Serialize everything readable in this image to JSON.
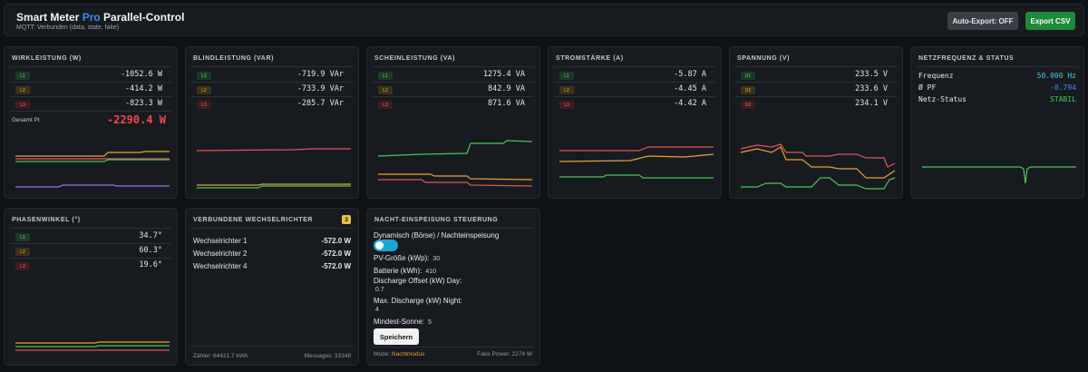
{
  "header": {
    "title_part1": "Smart Meter ",
    "title_pro": "Pro",
    "title_part2": " Parallel-Control",
    "subtitle": "MQTT: Verbunden (data, state, fake)",
    "auto_export_label": "Auto-Export: OFF",
    "export_label": "Export CSV"
  },
  "colors": {
    "l1": "#4ec45a",
    "l2": "#e2a23a",
    "l3": "#e0555a",
    "l_extra": "#a66cdb",
    "accent_blue": "#3b8ef0",
    "alert_red": "#ef4b4b",
    "ok_green": "#4ec45a"
  },
  "cards": {
    "wirk": {
      "title": "WIRKLEISTUNG (W)",
      "rows": [
        {
          "badge": "L1",
          "value": "-1052.6 W"
        },
        {
          "badge": "L2",
          "value": "-414.2 W"
        },
        {
          "badge": "L3",
          "value": "-823.3 W"
        }
      ],
      "total_label": "Gesamt Pt",
      "total_value": "-2290.4 W"
    },
    "blind": {
      "title": "BLINDLEISTUNG (VAR)",
      "rows": [
        {
          "badge": "L1",
          "value": "-719.9 VAr"
        },
        {
          "badge": "L2",
          "value": "-733.9 VAr"
        },
        {
          "badge": "L3",
          "value": "-285.7 VAr"
        }
      ]
    },
    "schein": {
      "title": "SCHEINLEISTUNG (VA)",
      "rows": [
        {
          "badge": "L1",
          "value": "1275.4 VA"
        },
        {
          "badge": "L2",
          "value": "842.9 VA"
        },
        {
          "badge": "L3",
          "value": "871.6 VA"
        }
      ]
    },
    "strom": {
      "title": "STROMSTÄRKE (A)",
      "rows": [
        {
          "badge": "L1",
          "value": "-5.87 A"
        },
        {
          "badge": "L2",
          "value": "-4.45 A"
        },
        {
          "badge": "L3",
          "value": "-4.42 A"
        }
      ]
    },
    "spannung": {
      "title": "SPANNUNG (V)",
      "rows": [
        {
          "badge": "U1",
          "value": "233.5 V"
        },
        {
          "badge": "U2",
          "value": "233.6 V"
        },
        {
          "badge": "U3",
          "value": "234.1 V"
        }
      ]
    },
    "netz": {
      "title": "NETZFREQUENZ & STATUS",
      "rows": [
        {
          "key": "Frequenz",
          "value": "50.000 Hz"
        },
        {
          "key": "Ø PF",
          "value": "-0.794"
        },
        {
          "key": "Netz-Status",
          "value": "STABIL"
        }
      ]
    },
    "phase": {
      "title": "PHASENWINKEL (°)",
      "rows": [
        {
          "badge": "L1",
          "value": "34.7°"
        },
        {
          "badge": "L2",
          "value": "60.3°"
        },
        {
          "badge": "L3",
          "value": "19.6°"
        }
      ]
    },
    "inverters": {
      "title": "VERBUNDENE WECHSELRICHTER",
      "count": "3",
      "items": [
        {
          "name": "Wechselrichter 1",
          "power": "-572.0 W"
        },
        {
          "name": "Wechselrichter 2",
          "power": "-572.0 W"
        },
        {
          "name": "Wechselrichter 4",
          "power": "-572.0 W"
        }
      ],
      "counter": "Zähler: 64421.7 kWh",
      "messages": "Messages: 33348"
    },
    "night": {
      "title": "NACHT-EINSPEISUNG STEUERUNG",
      "mode_label": "Dynamisch (Börse) / Nachteinspeisung",
      "toggle_on": true,
      "pv_label": "PV-Größe (kWp):",
      "pv_value": "30",
      "battery_label": "Batterie (kWh):",
      "battery_value": "410",
      "offset_label": "Discharge Offset (kW) Day:",
      "offset_value": "0.7",
      "maxdis_label": "Max. Discharge (kW) Night:",
      "maxdis_value": "4",
      "sun_label": "Mindest-Sonne:",
      "sun_value": "5",
      "save_label": "Speichern",
      "footer_mode_label": "Mode:",
      "footer_mode_value": "Nachtmodus",
      "footer_fake": "Fake Power: 2274 W"
    }
  }
}
